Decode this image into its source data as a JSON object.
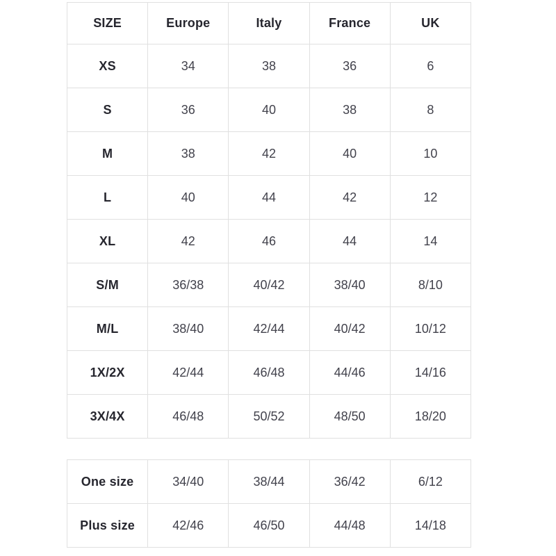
{
  "colors": {
    "background": "#ffffff",
    "border": "#e0e0e0",
    "header_text": "#26262e",
    "cell_text": "#42424c"
  },
  "chart_data": [
    {
      "type": "table",
      "title": "",
      "columns": [
        "SIZE",
        "Europe",
        "Italy",
        "France",
        "UK"
      ],
      "rows": [
        [
          "XS",
          "34",
          "38",
          "36",
          "6"
        ],
        [
          "S",
          "36",
          "40",
          "38",
          "8"
        ],
        [
          "M",
          "38",
          "42",
          "40",
          "10"
        ],
        [
          "L",
          "40",
          "44",
          "42",
          "12"
        ],
        [
          "XL",
          "42",
          "46",
          "44",
          "14"
        ],
        [
          "S/M",
          "36/38",
          "40/42",
          "38/40",
          "8/10"
        ],
        [
          "M/L",
          "38/40",
          "42/44",
          "40/42",
          "10/12"
        ],
        [
          "1X/2X",
          "42/44",
          "46/48",
          "44/46",
          "14/16"
        ],
        [
          "3X/4X",
          "46/48",
          "50/52",
          "48/50",
          "18/20"
        ]
      ],
      "layout": {
        "grid": true,
        "header_row": true,
        "cell_alignment": "center"
      }
    },
    {
      "type": "table",
      "title": "",
      "columns": [],
      "rows": [
        [
          "One size",
          "34/40",
          "38/44",
          "36/42",
          "6/12"
        ],
        [
          "Plus size",
          "42/46",
          "46/50",
          "44/48",
          "14/18"
        ]
      ],
      "layout": {
        "grid": true,
        "header_row": false,
        "cell_alignment": "center",
        "columns_match_table_above": true
      }
    }
  ]
}
